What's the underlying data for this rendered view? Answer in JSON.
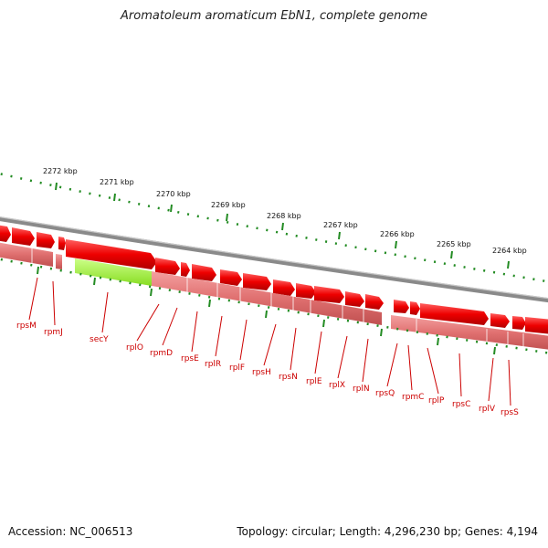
{
  "title": "Aromatoleum aromaticum EbN1, complete genome",
  "footer": {
    "accession": "Accession: NC_006513",
    "topology": "Topology: circular; Length: 4,296,230 bp; Genes: 4,194"
  },
  "ruler": {
    "labels": [
      "2272 kbp",
      "2271 kbp",
      "2270 kbp",
      "2269 kbp",
      "2268 kbp",
      "2267 kbp",
      "2266 kbp",
      "2265 kbp",
      "2264 kbp"
    ]
  },
  "genes": [
    "rpsM",
    "rpmJ",
    "secY",
    "rplO",
    "rpmD",
    "rpsE",
    "rplR",
    "rplF",
    "rpsH",
    "rpsN",
    "rplE",
    "rplX",
    "rplN",
    "rpsQ",
    "rpmC",
    "rplP",
    "rpsC",
    "rplV",
    "rpsS"
  ],
  "colors": {
    "gene_fill": "#e80000",
    "gene_highlight": "#ff5050",
    "secY_fill": "#aaff44",
    "cds_band": "#e88080",
    "cds_band_light": "#ffb0b0",
    "backbone": "#808080",
    "ruler_tick": "#228B22",
    "label": "#cc0000"
  }
}
